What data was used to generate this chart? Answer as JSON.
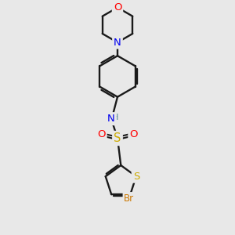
{
  "bg": "#e8e8e8",
  "bond_color": "#1a1a1a",
  "O_color": "#ff0000",
  "N_color": "#0000ee",
  "S_color": "#ccaa00",
  "Br_color": "#cc7700",
  "NH_N_color": "#0000ee",
  "NH_H_color": "#558899",
  "lw": 1.7,
  "fs": 8.5,
  "xlim": [
    -2.5,
    2.5
  ],
  "ylim": [
    -5.2,
    5.2
  ]
}
